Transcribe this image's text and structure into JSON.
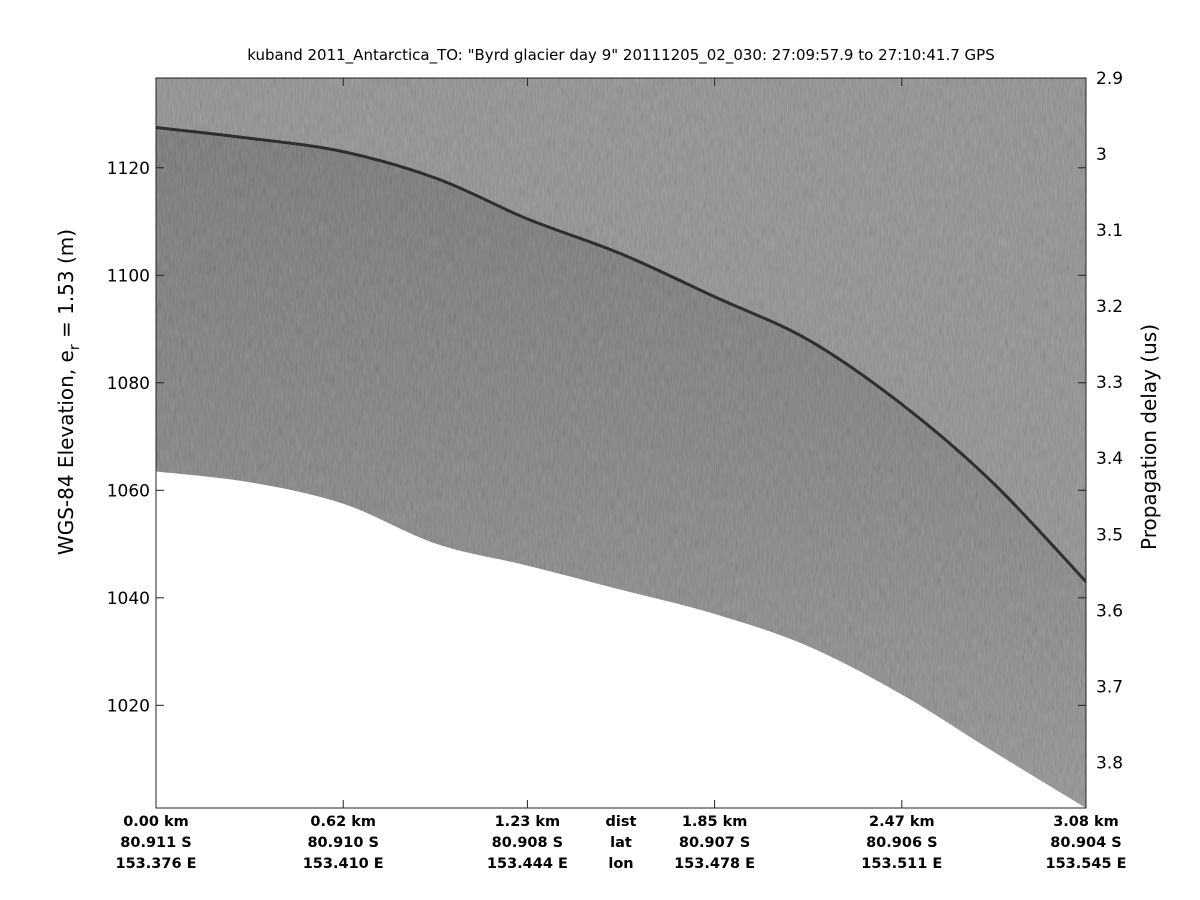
{
  "chart_data": {
    "type": "heatmap",
    "title": "kuband 2011_Antarctica_TO: \"Byrd glacier day 9\"  20111205_02_030: 27:09:57.9 to 27:10:41.7 GPS",
    "ylabel": "WGS-84 Elevation, e",
    "ylabel_sub": "r",
    "ylabel_tail": " = 1.53 (m)",
    "y2label": "Propagation delay (us)",
    "ylim": [
      1000.9,
      1136.7
    ],
    "y2lim": [
      2.9,
      3.86
    ],
    "yticks": [
      {
        "value": 1020,
        "label": "1020"
      },
      {
        "value": 1040,
        "label": "1040"
      },
      {
        "value": 1060,
        "label": "1060"
      },
      {
        "value": 1080,
        "label": "1080"
      },
      {
        "value": 1100,
        "label": "1100"
      },
      {
        "value": 1120,
        "label": "1120"
      }
    ],
    "y2ticks": [
      {
        "value": 2.9,
        "label": "2.9"
      },
      {
        "value": 3.0,
        "label": "3"
      },
      {
        "value": 3.1,
        "label": "3.1"
      },
      {
        "value": 3.2,
        "label": "3.2"
      },
      {
        "value": 3.3,
        "label": "3.3"
      },
      {
        "value": 3.4,
        "label": "3.4"
      },
      {
        "value": 3.5,
        "label": "3.5"
      },
      {
        "value": 3.6,
        "label": "3.6"
      },
      {
        "value": 3.7,
        "label": "3.7"
      },
      {
        "value": 3.8,
        "label": "3.8"
      }
    ],
    "xlim": [
      0,
      3.08
    ],
    "x_rows": [
      "dist",
      "lat",
      "lon"
    ],
    "xticks": [
      {
        "dist": 0.0,
        "dist_label": "0.00 km",
        "lat": "80.911 S",
        "lon": "153.376 E"
      },
      {
        "dist": 0.62,
        "dist_label": "0.62 km",
        "lat": "80.910 S",
        "lon": "153.410 E"
      },
      {
        "dist": 1.23,
        "dist_label": "1.23 km",
        "lat": "80.908 S",
        "lon": "153.444 E"
      },
      {
        "dist": 1.85,
        "dist_label": "1.85 km",
        "lat": "80.907 S",
        "lon": "153.478 E"
      },
      {
        "dist": 2.47,
        "dist_label": "2.47 km",
        "lat": "80.906 S",
        "lon": "153.511 E"
      },
      {
        "dist": 3.08,
        "dist_label": "3.08 km",
        "lat": "80.904 S",
        "lon": "153.545 E"
      }
    ],
    "surface_elevation": [
      [
        0.0,
        1127.5
      ],
      [
        0.31,
        1125.5
      ],
      [
        0.62,
        1123.0
      ],
      [
        0.93,
        1118.0
      ],
      [
        1.23,
        1110.5
      ],
      [
        1.54,
        1104.0
      ],
      [
        1.85,
        1096.0
      ],
      [
        2.16,
        1088.0
      ],
      [
        2.47,
        1076.0
      ],
      [
        2.77,
        1061.5
      ],
      [
        3.08,
        1043.0
      ]
    ],
    "data_bottom_elevation": [
      [
        0.0,
        1063.5
      ],
      [
        0.31,
        1061.5
      ],
      [
        0.62,
        1057.5
      ],
      [
        0.93,
        1050.0
      ],
      [
        1.23,
        1046.0
      ],
      [
        1.54,
        1041.5
      ],
      [
        1.85,
        1037.0
      ],
      [
        2.16,
        1031.0
      ],
      [
        2.47,
        1022.0
      ],
      [
        2.77,
        1011.5
      ],
      [
        3.08,
        1000.9
      ]
    ],
    "colors": {
      "echogram_gray": "#8a8a8a",
      "echogram_dark": "#505050",
      "surface_line": "#1e1e1e",
      "no_data": "#ffffff"
    },
    "grid": false,
    "colormap": "gray"
  }
}
